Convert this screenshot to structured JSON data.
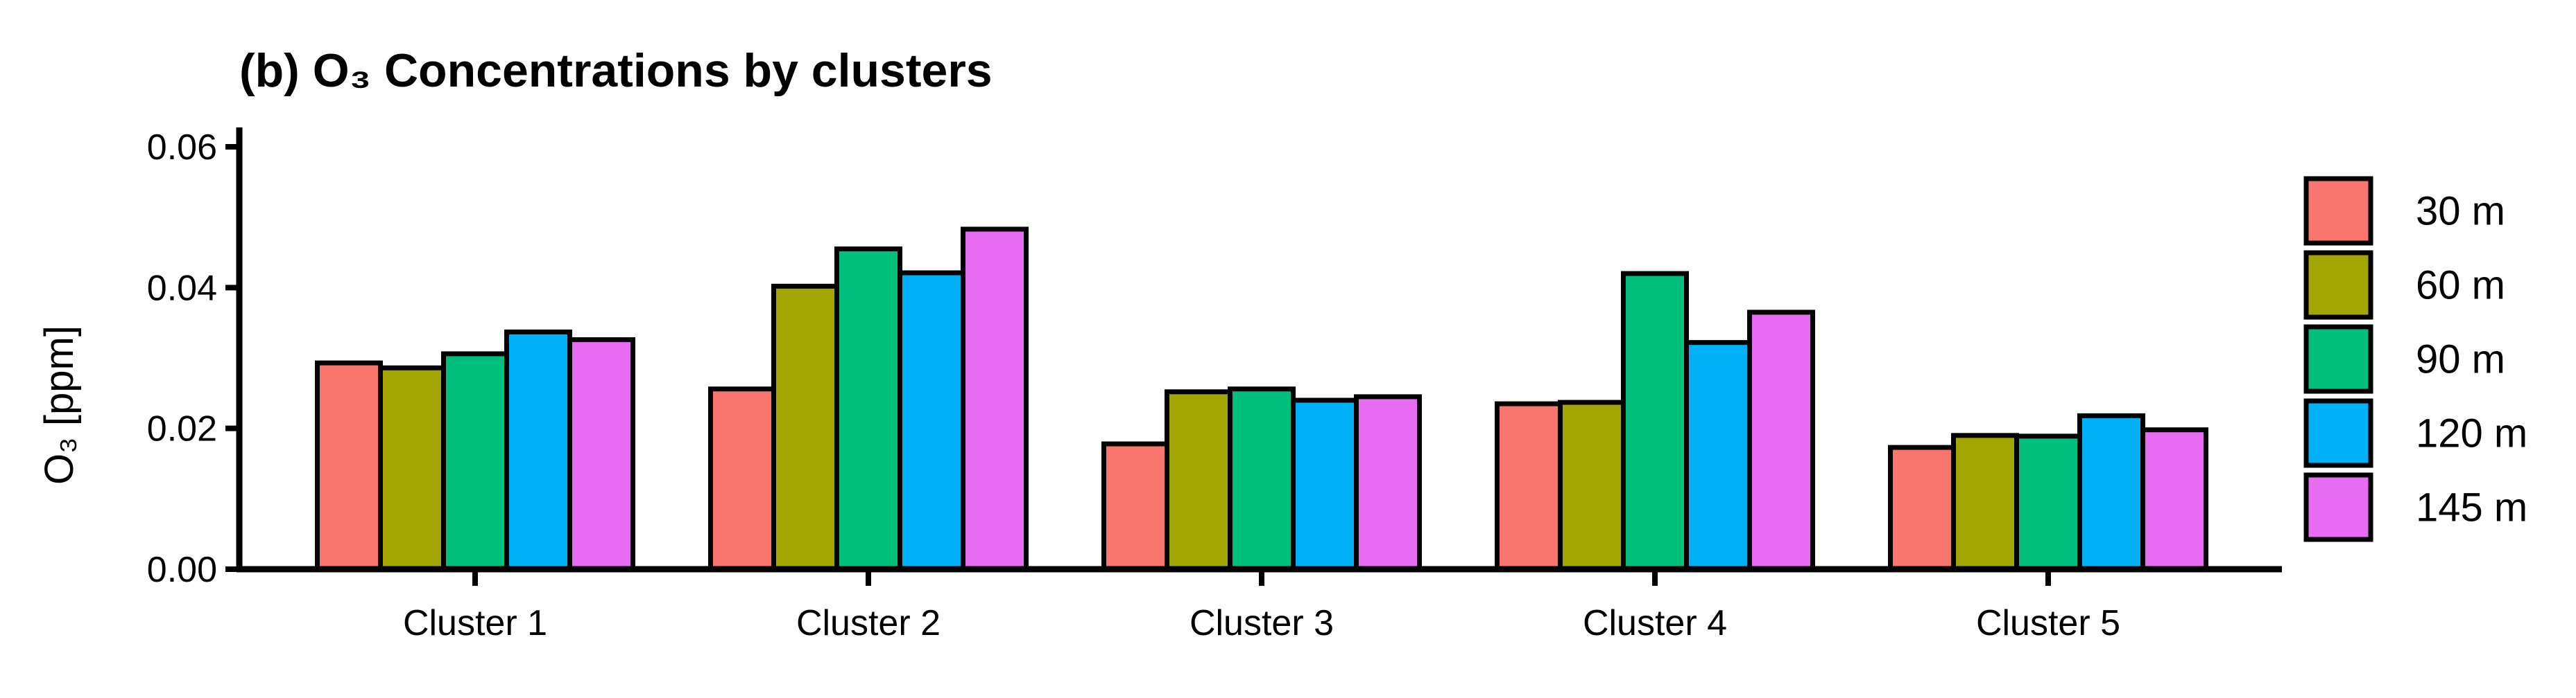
{
  "chart_data": {
    "type": "bar",
    "title": "(b) O₃ Concentrations by clusters",
    "xlabel": "",
    "ylabel": "O₃ [ppm]",
    "ylim": [
      0,
      0.06
    ],
    "yticks": [
      "0.00",
      "0.02",
      "0.04",
      "0.06"
    ],
    "ytick_values": [
      0,
      0.02,
      0.04,
      0.06
    ],
    "categories": [
      "Cluster 1",
      "Cluster 2",
      "Cluster 3",
      "Cluster 4",
      "Cluster 5"
    ],
    "series": [
      {
        "name": "30 m",
        "color": "#F8766D",
        "values": [
          0.0293,
          0.0256,
          0.0178,
          0.0235,
          0.0173
        ]
      },
      {
        "name": "60 m",
        "color": "#A3A500",
        "values": [
          0.0286,
          0.0402,
          0.0252,
          0.0237,
          0.019
        ]
      },
      {
        "name": "90 m",
        "color": "#00BF7D",
        "values": [
          0.0306,
          0.0455,
          0.0256,
          0.042,
          0.0189
        ]
      },
      {
        "name": "120 m",
        "color": "#00B0F6",
        "values": [
          0.0337,
          0.0421,
          0.024,
          0.0322,
          0.0218
        ]
      },
      {
        "name": "145 m",
        "color": "#E76BF3",
        "values": [
          0.0326,
          0.0483,
          0.0245,
          0.0365,
          0.0198
        ]
      }
    ],
    "legend_position": "right",
    "grid": false
  }
}
